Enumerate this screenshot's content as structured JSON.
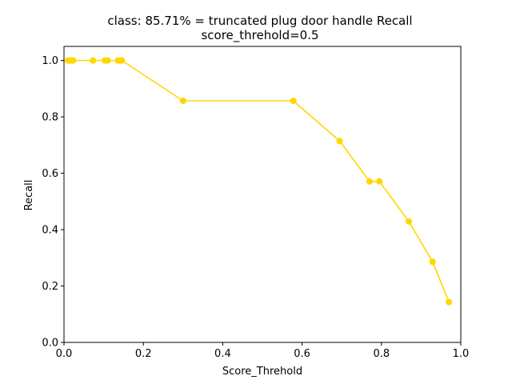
{
  "chart_data": {
    "type": "line",
    "title": "class: 85.71% = truncated plug door handle Recall",
    "subtitle": "score_threhold=0.5",
    "xlabel": "Score_Threhold",
    "ylabel": "Recall",
    "xlim": [
      0.0,
      1.0
    ],
    "ylim": [
      0.0,
      1.05
    ],
    "xticks": [
      "0.0",
      "0.2",
      "0.4",
      "0.6",
      "0.8",
      "1.0"
    ],
    "yticks": [
      "0.0",
      "0.2",
      "0.4",
      "0.6",
      "0.8",
      "1.0"
    ],
    "grid": false,
    "series": [
      {
        "color": "#FFD700",
        "x": [
          0.01,
          0.015,
          0.02,
          0.023,
          0.073,
          0.103,
          0.11,
          0.136,
          0.141,
          0.146,
          0.3,
          0.578,
          0.695,
          0.77,
          0.795,
          0.869,
          0.929,
          0.97
        ],
        "y": [
          1.0,
          1.0,
          1.0,
          1.0,
          1.0,
          1.0,
          1.0,
          1.0,
          1.0,
          1.0,
          0.857,
          0.857,
          0.714,
          0.571,
          0.571,
          0.429,
          0.286,
          0.143
        ]
      }
    ]
  }
}
